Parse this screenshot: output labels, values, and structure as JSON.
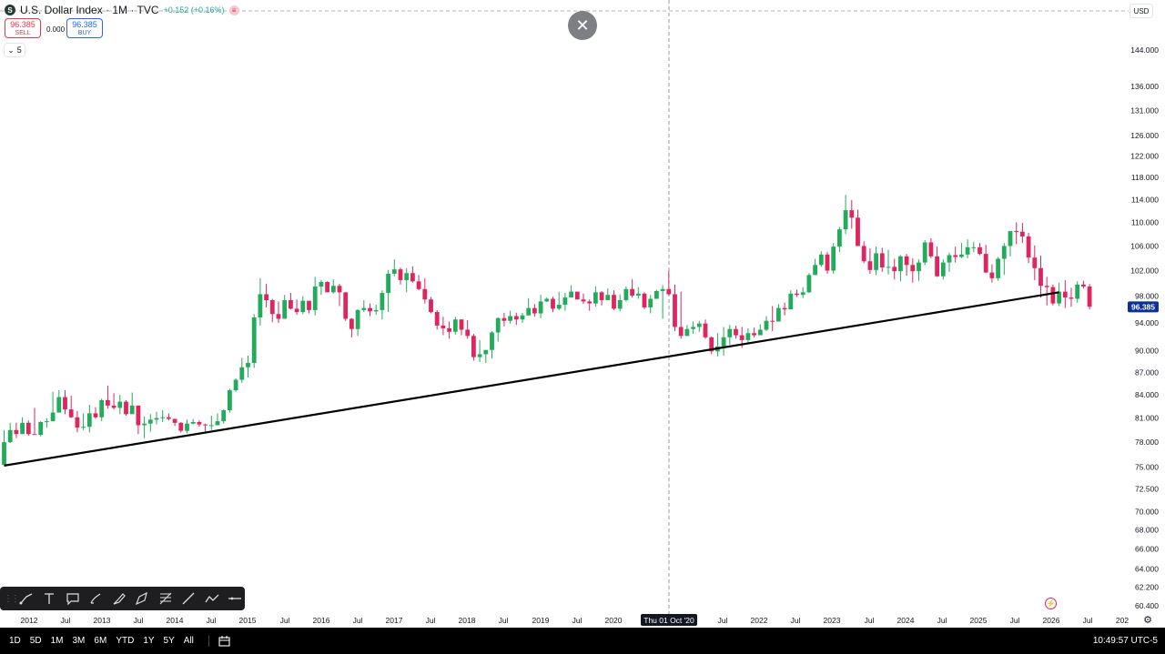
{
  "header": {
    "symbol_icon": "S",
    "title": "U.S. Dollar Index · 1M · TVC",
    "change": "+0.152 (+0.16%)",
    "indicator_icon": "equals-icon",
    "sell_price": "96.385",
    "sell_label": "SELL",
    "spread": "0.000",
    "buy_price": "96.385",
    "buy_label": "BUY",
    "collapse_count": "5",
    "currency": "USD"
  },
  "toolbar": {
    "close_icon": "✕",
    "tools": [
      "trend-line-icon",
      "text-icon",
      "callout-icon",
      "brush-icon",
      "highlighter-icon",
      "path-icon",
      "fib-retracement-icon",
      "ray-icon",
      "polyline-icon",
      "horizontal-line-icon"
    ]
  },
  "bottom_bar": {
    "ranges": [
      "1D",
      "5D",
      "1M",
      "3M",
      "6M",
      "YTD",
      "1Y",
      "5Y",
      "All"
    ],
    "time": "10:49:57 UTC-5"
  },
  "colors": {
    "up": "#22ab5a",
    "down": "#e0245e",
    "trendline": "#000000",
    "price_label": "#0c3299"
  },
  "chart_data": {
    "type": "candlestick",
    "interval": "1M",
    "x_start": "2011-11",
    "x_axis_ticks": [
      "2012",
      "Jul",
      "2013",
      "Jul",
      "2014",
      "Jul",
      "2015",
      "Jul",
      "2016",
      "Jul",
      "2017",
      "Jul",
      "2018",
      "Jul",
      "2019",
      "Jul",
      "2020",
      "Thu 01 Oct '20",
      "Jul",
      "2022",
      "Jul",
      "2023",
      "Jul",
      "2024",
      "Jul",
      "2025",
      "Jul",
      "2026",
      "Jul",
      "202"
    ],
    "crosshair_label": "Thu 01 Oct '20",
    "y_axis_ticks": [
      "144.000",
      "136.000",
      "131.000",
      "126.000",
      "122.000",
      "118.000",
      "114.000",
      "110.000",
      "106.000",
      "102.000",
      "98.000",
      "94.000",
      "90.000",
      "87.000",
      "84.000",
      "81.000",
      "78.000",
      "75.000",
      "72.500",
      "70.000",
      "68.000",
      "66.000",
      "64.000",
      "62.200",
      "60.400"
    ],
    "y_scale": "log",
    "ylim": [
      59.5,
      157
    ],
    "last_price": "96.385",
    "trendline": {
      "start": {
        "date": "2011-11",
        "value": 75.2
      },
      "end": {
        "date": "2026-04",
        "value": 98.6
      }
    },
    "close": [
      78.0,
      79.5,
      79.0,
      80.4,
      79.0,
      78.9,
      80.5,
      80.6,
      81.7,
      83.7,
      82.1,
      81.1,
      79.8,
      79.9,
      81.6,
      81.1,
      83.3,
      82.6,
      82.3,
      83.1,
      81.5,
      82.6,
      80.1,
      80.3,
      80.8,
      81.0,
      81.1,
      80.9,
      80.4,
      79.4,
      80.3,
      80.5,
      80.2,
      80.1,
      80.1,
      80.6,
      82.0,
      84.6,
      86.0,
      87.7,
      88.3,
      94.8,
      98.3,
      97.4,
      95.3,
      94.6,
      97.4,
      96.1,
      95.6,
      97.3,
      95.9,
      99.5,
      100.2,
      98.6,
      99.6,
      98.6,
      94.6,
      93.1,
      95.9,
      96.2,
      95.7,
      95.9,
      98.5,
      101.5,
      102.2,
      100.5,
      101.6,
      100.3,
      99.1,
      97.5,
      95.6,
      93.6,
      93.2,
      92.7,
      94.5,
      93.0,
      92.1,
      89.1,
      89.5,
      90.1,
      92.6,
      94.7,
      94.3,
      95.0,
      94.5,
      95.1,
      96.2,
      95.4,
      97.2,
      97.6,
      96.1,
      96.7,
      97.8,
      98.7,
      97.5,
      97.2,
      96.9,
      98.6,
      97.4,
      98.2,
      96.1,
      97.4,
      99.1,
      98.1,
      98.4,
      96.3,
      97.6,
      98.8,
      99.1,
      98.3,
      93.4,
      92.1,
      93.1,
      93.4,
      93.9,
      91.9,
      89.9,
      90.6,
      91.9,
      93.1,
      92.2,
      91.5,
      92.5,
      92.2,
      93.0,
      94.3,
      94.2,
      96.2,
      96.0,
      98.4,
      98.2,
      98.6,
      101.3,
      102.9,
      104.6,
      102.0,
      105.9,
      108.8,
      112.1,
      110.8,
      106.0,
      103.5,
      102.1,
      104.8,
      102.5,
      102.6,
      101.9,
      104.3,
      102.9,
      101.9,
      103.3,
      106.6,
      104.3,
      101.1,
      103.3,
      104.5,
      104.2,
      104.6,
      105.8,
      105.8,
      104.7,
      101.7,
      100.8,
      103.9,
      106.0,
      108.5,
      108.4,
      107.6,
      104.1,
      102.4,
      99.6,
      99.4,
      96.9,
      98.7,
      97.8,
      97.6,
      99.8,
      99.5,
      96.4
    ],
    "high": [
      79.5,
      80.4,
      80.4,
      81.1,
      80.7,
      82.3,
      80.6,
      81.0,
      84.4,
      84.6,
      84.6,
      83.9,
      81.9,
      81.6,
      82.7,
      82.4,
      83.5,
      85.2,
      84.2,
      84.0,
      83.3,
      84.3,
      80.2,
      81.2,
      81.5,
      81.8,
      82.0,
      81.6,
      80.8,
      80.5,
      80.8,
      80.9,
      80.7,
      80.3,
      81.3,
      81.6,
      82.1,
      84.8,
      86.2,
      89.0,
      89.3,
      95.3,
      100.8,
      99.9,
      97.6,
      97.2,
      98.2,
      98.5,
      97.5,
      98.0,
      97.1,
      101.0,
      100.5,
      100.3,
      100.6,
      99.9,
      95.6,
      94.7,
      96.0,
      97.4,
      96.9,
      96.7,
      98.9,
      102.1,
      103.8,
      102.5,
      102.4,
      102.7,
      101.3,
      100.8,
      97.9,
      95.9,
      94.9,
      94.2,
      94.9,
      94.5,
      94.4,
      92.4,
      91.5,
      90.1,
      92.8,
      94.8,
      95.5,
      95.8,
      95.5,
      95.5,
      97.7,
      96.8,
      98.2,
      97.8,
      97.9,
      98.7,
      98.5,
      99.7,
      98.7,
      98.4,
      97.5,
      99.5,
      98.8,
      99.2,
      98.9,
      98.3,
      99.5,
      100.6,
      99.4,
      98.6,
      98.2,
      99.0,
      99.7,
      102.0,
      99.8,
      98.7,
      93.7,
      94.2,
      94.3,
      94.5,
      92.0,
      92.5,
      93.4,
      93.7,
      93.6,
      93.4,
      93.2,
      93.3,
      93.8,
      95.0,
      96.5,
      96.8,
      97.0,
      98.9,
      99.0,
      99.4,
      101.6,
      103.9,
      105.1,
      105.0,
      106.5,
      109.2,
      114.8,
      113.9,
      112.2,
      106.8,
      105.6,
      105.9,
      105.7,
      105.4,
      103.9,
      104.5,
      104.7,
      104.0,
      103.8,
      107.0,
      107.3,
      105.9,
      103.8,
      104.9,
      105.9,
      106.5,
      107.1,
      106.7,
      106.5,
      106.2,
      103.0,
      104.2,
      106.5,
      108.0,
      110.0,
      109.9,
      108.2,
      106.1,
      104.4,
      101.0,
      99.8,
      100.1,
      100.5,
      99.3,
      100.3,
      100.4,
      99.9
    ],
    "low": [
      77.7,
      77.9,
      78.5,
      79.0,
      78.8,
      79.0,
      78.7,
      79.8,
      81.1,
      82.4,
      81.5,
      81.0,
      79.2,
      79.5,
      79.2,
      80.9,
      80.6,
      82.2,
      82.1,
      81.5,
      81.3,
      82.0,
      79.0,
      78.5,
      79.3,
      80.2,
      80.5,
      80.7,
      80.0,
      79.2,
      79.1,
      80.2,
      79.9,
      79.3,
      79.5,
      80.4,
      80.3,
      81.7,
      84.4,
      85.6,
      86.3,
      87.6,
      93.6,
      96.3,
      94.1,
      94.0,
      95.1,
      96.0,
      95.2,
      95.3,
      95.4,
      95.1,
      98.2,
      98.6,
      98.4,
      96.5,
      94.3,
      91.9,
      92.1,
      95.6,
      95.0,
      95.2,
      94.5,
      95.6,
      101.1,
      99.8,
      98.6,
      100.1,
      98.9,
      96.9,
      95.4,
      93.0,
      92.2,
      91.7,
      92.3,
      92.2,
      91.7,
      88.6,
      88.4,
      88.3,
      88.9,
      91.3,
      93.5,
      93.9,
      93.7,
      94.0,
      96.0,
      94.9,
      94.7,
      97.1,
      95.6,
      95.9,
      95.8,
      97.9,
      97.5,
      96.8,
      95.8,
      96.4,
      96.6,
      97.4,
      95.9,
      95.7,
      97.2,
      97.8,
      97.6,
      96.0,
      95.4,
      97.7,
      94.6,
      98.1,
      92.8,
      91.7,
      92.1,
      92.4,
      92.7,
      91.7,
      89.5,
      89.2,
      89.3,
      90.8,
      91.7,
      90.4,
      90.9,
      91.9,
      92.4,
      92.8,
      92.8,
      95.3,
      95.1,
      97.6,
      97.9,
      97.7,
      98.5,
      101.7,
      102.6,
      101.5,
      101.5,
      105.0,
      108.0,
      108.9,
      106.6,
      103.2,
      101.5,
      101.3,
      101.8,
      101.4,
      100.6,
      100.3,
      101.2,
      100.1,
      100.4,
      102.9,
      104.0,
      101.0,
      100.6,
      101.8,
      103.3,
      104.0,
      104.0,
      105.0,
      104.5,
      101.6,
      100.1,
      100.4,
      101.3,
      104.3,
      106.3,
      106.5,
      103.2,
      100.5,
      97.8,
      96.6,
      96.6,
      96.5,
      96.2,
      96.4,
      97.0,
      99.2,
      96.0
    ]
  }
}
